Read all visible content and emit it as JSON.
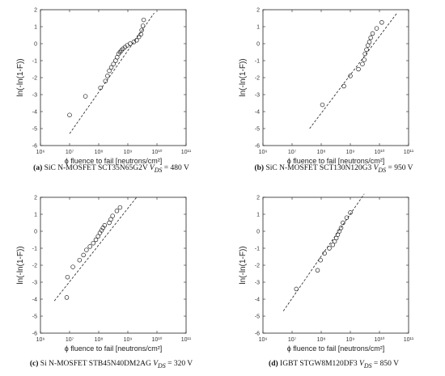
{
  "chart_data": [
    {
      "type": "scatter",
      "caption_tag": "(a)",
      "caption_text": "SiC N-MOSFET SCT35N65G2V",
      "caption_vds": "= 480 V",
      "xlabel": "ϕ fluence to fail [neutrons/cm²]",
      "ylabel": "ln(-ln(1-F))",
      "xscale": "log",
      "xlim": [
        1000000,
        100000000000
      ],
      "ylim": [
        -6,
        2
      ],
      "xticks": [
        "10⁶",
        "10⁷",
        "10⁸",
        "10⁹",
        "10¹⁰",
        "10¹¹"
      ],
      "yticks": [
        2,
        1,
        0,
        -1,
        -2,
        -3,
        -4,
        -5,
        -6
      ],
      "points": [
        [
          10000000,
          -4.2
        ],
        [
          35000000,
          -3.1
        ],
        [
          115000000,
          -2.6
        ],
        [
          170000000,
          -2.2
        ],
        [
          200000000,
          -1.9
        ],
        [
          230000000,
          -1.6
        ],
        [
          270000000,
          -1.4
        ],
        [
          320000000,
          -1.2
        ],
        [
          380000000,
          -1.0
        ],
        [
          430000000,
          -0.8
        ],
        [
          480000000,
          -0.6
        ],
        [
          540000000,
          -0.5
        ],
        [
          600000000,
          -0.4
        ],
        [
          680000000,
          -0.3
        ],
        [
          800000000,
          -0.2
        ],
        [
          950000000,
          -0.1
        ],
        [
          1200000000,
          0.0
        ],
        [
          1600000000,
          0.1
        ],
        [
          2000000000,
          0.2
        ],
        [
          2400000000,
          0.4
        ],
        [
          2800000000,
          0.55
        ],
        [
          3000000000,
          0.8
        ],
        [
          3300000000,
          1.05
        ],
        [
          3500000000,
          1.4
        ]
      ],
      "fit_line": [
        [
          10000000,
          -5.3
        ],
        [
          8000000000,
          1.8
        ]
      ]
    },
    {
      "type": "scatter",
      "caption_tag": "(b)",
      "caption_text": "SiC N-MOSFET SCT130N120G3",
      "caption_vds": "= 950 V",
      "xlabel": "ϕ fluence to fail [neutrons/cm²]",
      "ylabel": "ln(-ln(1-F))",
      "xscale": "log",
      "xlim": [
        1000000,
        100000000000
      ],
      "ylim": [
        -6,
        2
      ],
      "xticks": [
        "10⁶",
        "10⁷",
        "10⁸",
        "10⁹",
        "10¹⁰",
        "10¹¹"
      ],
      "yticks": [
        2,
        1,
        0,
        -1,
        -2,
        -3,
        -4,
        -5,
        -6
      ],
      "points": [
        [
          110000000,
          -3.6
        ],
        [
          600000000,
          -2.5
        ],
        [
          1000000000,
          -1.9
        ],
        [
          1900000000,
          -1.5
        ],
        [
          2600000000,
          -1.2
        ],
        [
          3000000000,
          -0.95
        ],
        [
          3200000000,
          -0.6
        ],
        [
          3600000000,
          -0.35
        ],
        [
          4000000000,
          -0.1
        ],
        [
          4500000000,
          0.1
        ],
        [
          5000000000,
          0.35
        ],
        [
          5800000000,
          0.6
        ],
        [
          8000000000,
          0.9
        ],
        [
          12000000000,
          1.25
        ]
      ],
      "fit_line": [
        [
          40000000,
          -5.0
        ],
        [
          40000000000,
          1.8
        ]
      ]
    },
    {
      "type": "scatter",
      "caption_tag": "(c)",
      "caption_text": "Si N-MOSFET STB45N40DM2AG",
      "caption_vds": "= 320 V",
      "xlabel": "ϕ fluence to fail [neutrons/cm²]",
      "ylabel": "ln(-ln(1-F))",
      "xscale": "log",
      "xlim": [
        1000000,
        100000000000
      ],
      "ylim": [
        -6,
        2
      ],
      "xticks": [
        "10⁶",
        "10⁷",
        "10⁸",
        "10⁹",
        "10¹⁰",
        "10¹¹"
      ],
      "yticks": [
        2,
        1,
        0,
        -1,
        -2,
        -3,
        -4,
        -5,
        -6
      ],
      "points": [
        [
          8000000,
          -3.9
        ],
        [
          8500000,
          -2.7
        ],
        [
          13000000,
          -2.1
        ],
        [
          22000000,
          -1.7
        ],
        [
          30000000,
          -1.4
        ],
        [
          38000000,
          -1.1
        ],
        [
          50000000,
          -0.9
        ],
        [
          65000000,
          -0.7
        ],
        [
          80000000,
          -0.5
        ],
        [
          95000000,
          -0.3
        ],
        [
          110000000,
          -0.1
        ],
        [
          125000000,
          0.05
        ],
        [
          140000000,
          0.2
        ],
        [
          160000000,
          0.35
        ],
        [
          230000000,
          0.5
        ],
        [
          260000000,
          0.7
        ],
        [
          300000000,
          0.9
        ],
        [
          420000000,
          1.2
        ],
        [
          540000000,
          1.4
        ]
      ],
      "fit_line": [
        [
          3000000,
          -4.1
        ],
        [
          2000000000,
          2.0
        ]
      ]
    },
    {
      "type": "scatter",
      "caption_tag": "(d)",
      "caption_text": "IGBT STGW8M120DF3",
      "caption_vds": "= 850 V",
      "xlabel": "ϕ fluence to fail [neutrons/cm²]",
      "ylabel": "ln(-ln(1-F))",
      "xscale": "log",
      "xlim": [
        1000000,
        100000000000
      ],
      "ylim": [
        -6,
        2
      ],
      "xticks": [
        "10⁶",
        "10⁷",
        "10⁸",
        "10⁹",
        "10¹⁰",
        "10¹¹"
      ],
      "yticks": [
        2,
        1,
        0,
        -1,
        -2,
        -3,
        -4,
        -5,
        -6
      ],
      "points": [
        [
          14000000,
          -3.4
        ],
        [
          75000000,
          -2.3
        ],
        [
          95000000,
          -1.7
        ],
        [
          130000000,
          -1.3
        ],
        [
          190000000,
          -1.0
        ],
        [
          250000000,
          -0.8
        ],
        [
          290000000,
          -0.6
        ],
        [
          330000000,
          -0.4
        ],
        [
          370000000,
          -0.2
        ],
        [
          420000000,
          0.0
        ],
        [
          480000000,
          0.2
        ],
        [
          560000000,
          0.5
        ],
        [
          750000000,
          0.8
        ],
        [
          1000000000,
          1.1
        ]
      ],
      "fit_line": [
        [
          5000000,
          -4.7
        ],
        [
          3000000000,
          2.2
        ]
      ]
    }
  ]
}
